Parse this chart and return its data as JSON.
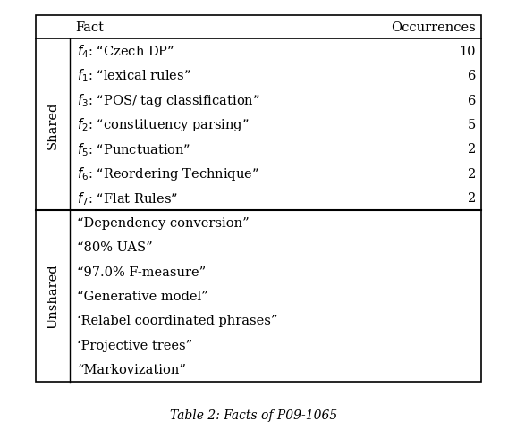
{
  "caption": "Table 2: Facts of P09-1065",
  "header": [
    "Fact",
    "Occurrences"
  ],
  "shared_label": "Shared",
  "unshared_label": "Unshared",
  "shared_rows": [
    {
      "subscript": "4",
      "fact_text": "“Czech DP”",
      "occurrences": "10"
    },
    {
      "subscript": "1",
      "fact_text": "“lexical rules”",
      "occurrences": "6"
    },
    {
      "subscript": "3",
      "fact_text": "“POS/ tag classification”",
      "occurrences": "6"
    },
    {
      "subscript": "2",
      "fact_text": "“constituency parsing”",
      "occurrences": "5"
    },
    {
      "subscript": "5",
      "fact_text": "“Punctuation”",
      "occurrences": "2"
    },
    {
      "subscript": "6",
      "fact_text": "“Reordering Technique”",
      "occurrences": "2"
    },
    {
      "subscript": "7",
      "fact_text": "“Flat Rules”",
      "occurrences": "2"
    }
  ],
  "unshared_rows": [
    "“Dependency conversion”",
    "“80% UAS”",
    "“97.0% F-measure”",
    "“Generative model”",
    "‘Relabel coordinated phrases”",
    "‘Projective trees”",
    "“Markovization”"
  ],
  "bg_color": "#ffffff",
  "text_color": "#000000",
  "font_size": 10.5,
  "caption_font_size": 10
}
